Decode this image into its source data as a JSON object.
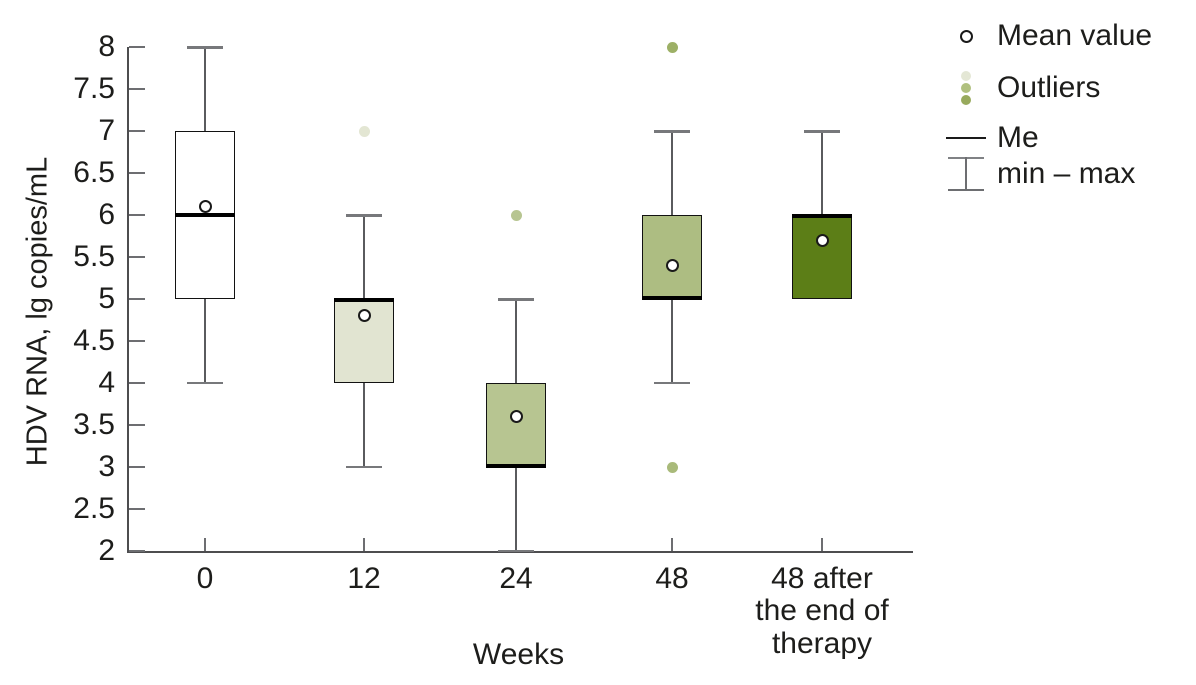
{
  "chart_data": {
    "type": "boxplot",
    "title": "",
    "xlabel": "Weeks",
    "ylabel": "HDV RNA, lg copies/mL",
    "ylim": [
      2,
      8
    ],
    "yticks": [
      8,
      7.5,
      7,
      6.5,
      6,
      5.5,
      5,
      4.5,
      4,
      3.5,
      3,
      2.5,
      2
    ],
    "grid": false,
    "legend_position": "right",
    "categories": [
      "0",
      "12",
      "24",
      "48",
      "48 after\nthe end of\ntherapy"
    ],
    "boxes": [
      {
        "category": "0",
        "min": 4,
        "q1": 5,
        "median": 6,
        "q3": 7,
        "max": 8,
        "mean": 6.1,
        "fill": "#ffffff",
        "outliers": []
      },
      {
        "category": "12",
        "min": 3,
        "q1": 4,
        "median": 5,
        "q3": 5,
        "max": 6,
        "mean": 4.8,
        "fill": "#e1e4d1",
        "outliers": [
          {
            "value": 7,
            "color": "#e3e6d3"
          }
        ]
      },
      {
        "category": "24",
        "min": 2,
        "q1": 3,
        "median": 3,
        "q3": 4,
        "max": 5,
        "mean": 3.6,
        "fill": "#b7c591",
        "outliers": [
          {
            "value": 6,
            "color": "#b7c591"
          }
        ]
      },
      {
        "category": "48",
        "min": 4,
        "q1": 5,
        "median": 5,
        "q3": 6,
        "max": 7,
        "mean": 5.4,
        "fill": "#adbd82",
        "outliers": [
          {
            "value": 8,
            "color": "#9db066"
          },
          {
            "value": 3,
            "color": "#a9ba7a"
          }
        ]
      },
      {
        "category": "48 after\nthe end of\ntherapy",
        "min": null,
        "q1": 5,
        "median": 6,
        "q3": 6,
        "max": 7,
        "mean": 5.7,
        "fill": "#5c7e17",
        "outliers": []
      }
    ],
    "legend": [
      {
        "symbol": "open-circle",
        "label": "Mean value"
      },
      {
        "symbol": "dots",
        "label": "Outliers",
        "colors": [
          "#e4e7d5",
          "#b0c07f",
          "#98aa5d"
        ]
      },
      {
        "symbol": "median-line",
        "label": "Me"
      },
      {
        "symbol": "whisker",
        "label": "min – max"
      }
    ]
  }
}
